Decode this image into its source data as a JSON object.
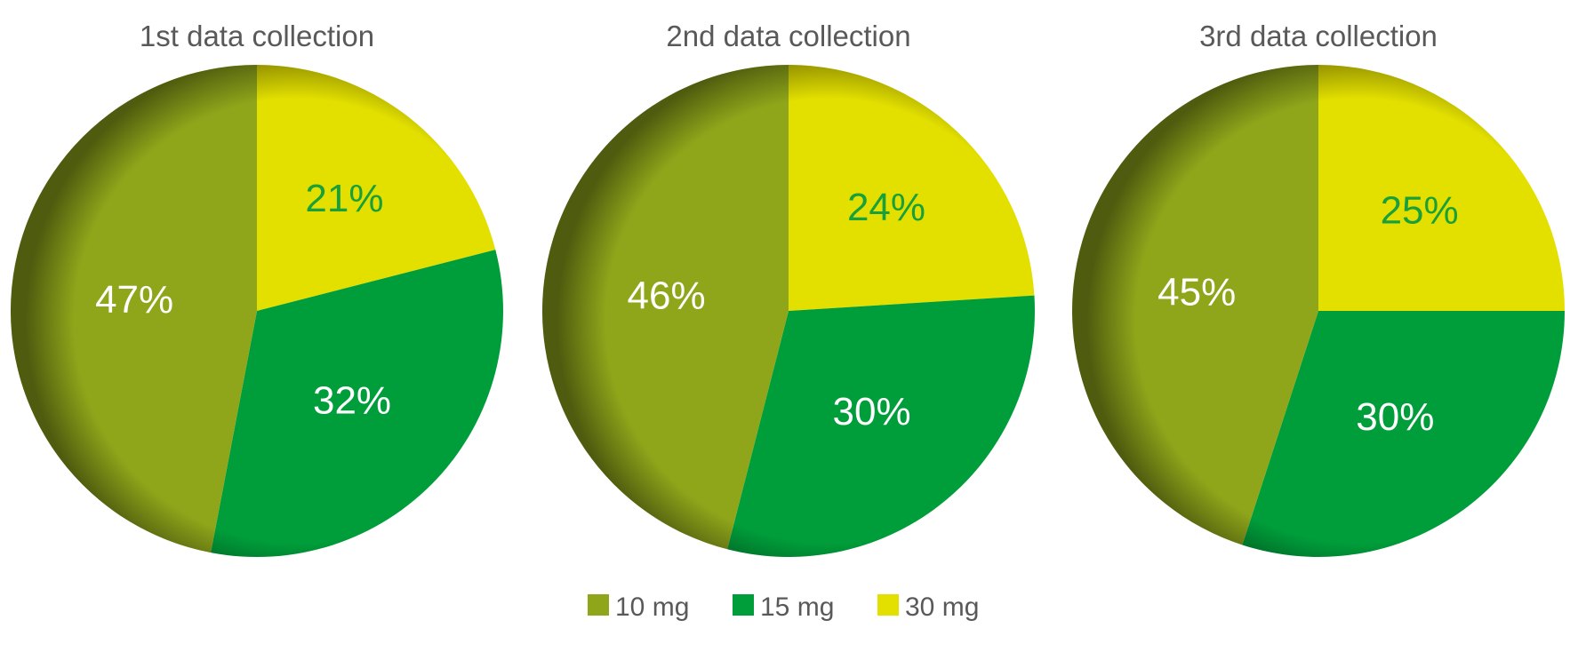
{
  "chart_data": [
    {
      "type": "pie",
      "title": "1st data collection",
      "categories": [
        "10 mg",
        "15 mg",
        "30 mg"
      ],
      "values": [
        47,
        32,
        21
      ],
      "labels": [
        "47%",
        "32%",
        "21%"
      ]
    },
    {
      "type": "pie",
      "title": "2nd data collection",
      "categories": [
        "10 mg",
        "15 mg",
        "30 mg"
      ],
      "values": [
        46,
        30,
        24
      ],
      "labels": [
        "46%",
        "30%",
        "24%"
      ]
    },
    {
      "type": "pie",
      "title": "3rd data collection",
      "categories": [
        "10 mg",
        "15 mg",
        "30 mg"
      ],
      "values": [
        45,
        30,
        25
      ],
      "labels": [
        "45%",
        "30%",
        "25%"
      ]
    }
  ],
  "legend": {
    "placement": "bottom",
    "items": [
      {
        "label": "10 mg",
        "color": "#8fa61a"
      },
      {
        "label": "15 mg",
        "color": "#009e3a"
      },
      {
        "label": "30 mg",
        "color": "#e3e000"
      }
    ]
  },
  "label_colors": [
    "#ffffff",
    "#ffffff",
    "#1aa03a"
  ]
}
